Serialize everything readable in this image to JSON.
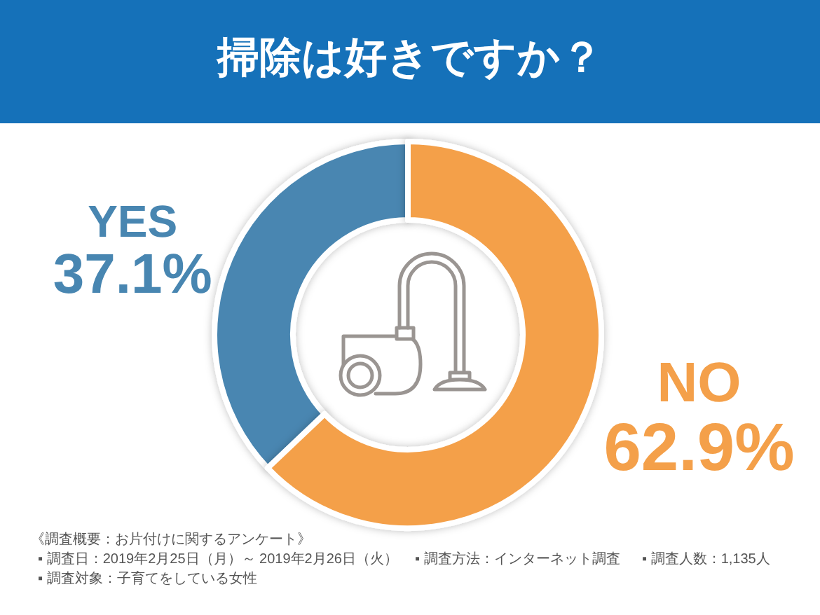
{
  "chart_data": {
    "type": "donut",
    "title": "掃除は好きですか？",
    "categories": [
      "YES",
      "NO"
    ],
    "values": [
      37.1,
      62.9
    ],
    "colors": [
      "#4886b1",
      "#f4a04a"
    ],
    "value_labels": [
      "37.1%",
      "62.9%"
    ],
    "annotations": [
      "《調査概要：お片付けに関するアンケート》",
      "▪ 調査日：2019年2月25日（月）～ 2019年2月26日（火）",
      "▪ 調査方法：インターネット調査",
      "▪ 調査人数：1,135人",
      "▪ 調査対象：子育てをしている女性"
    ]
  }
}
